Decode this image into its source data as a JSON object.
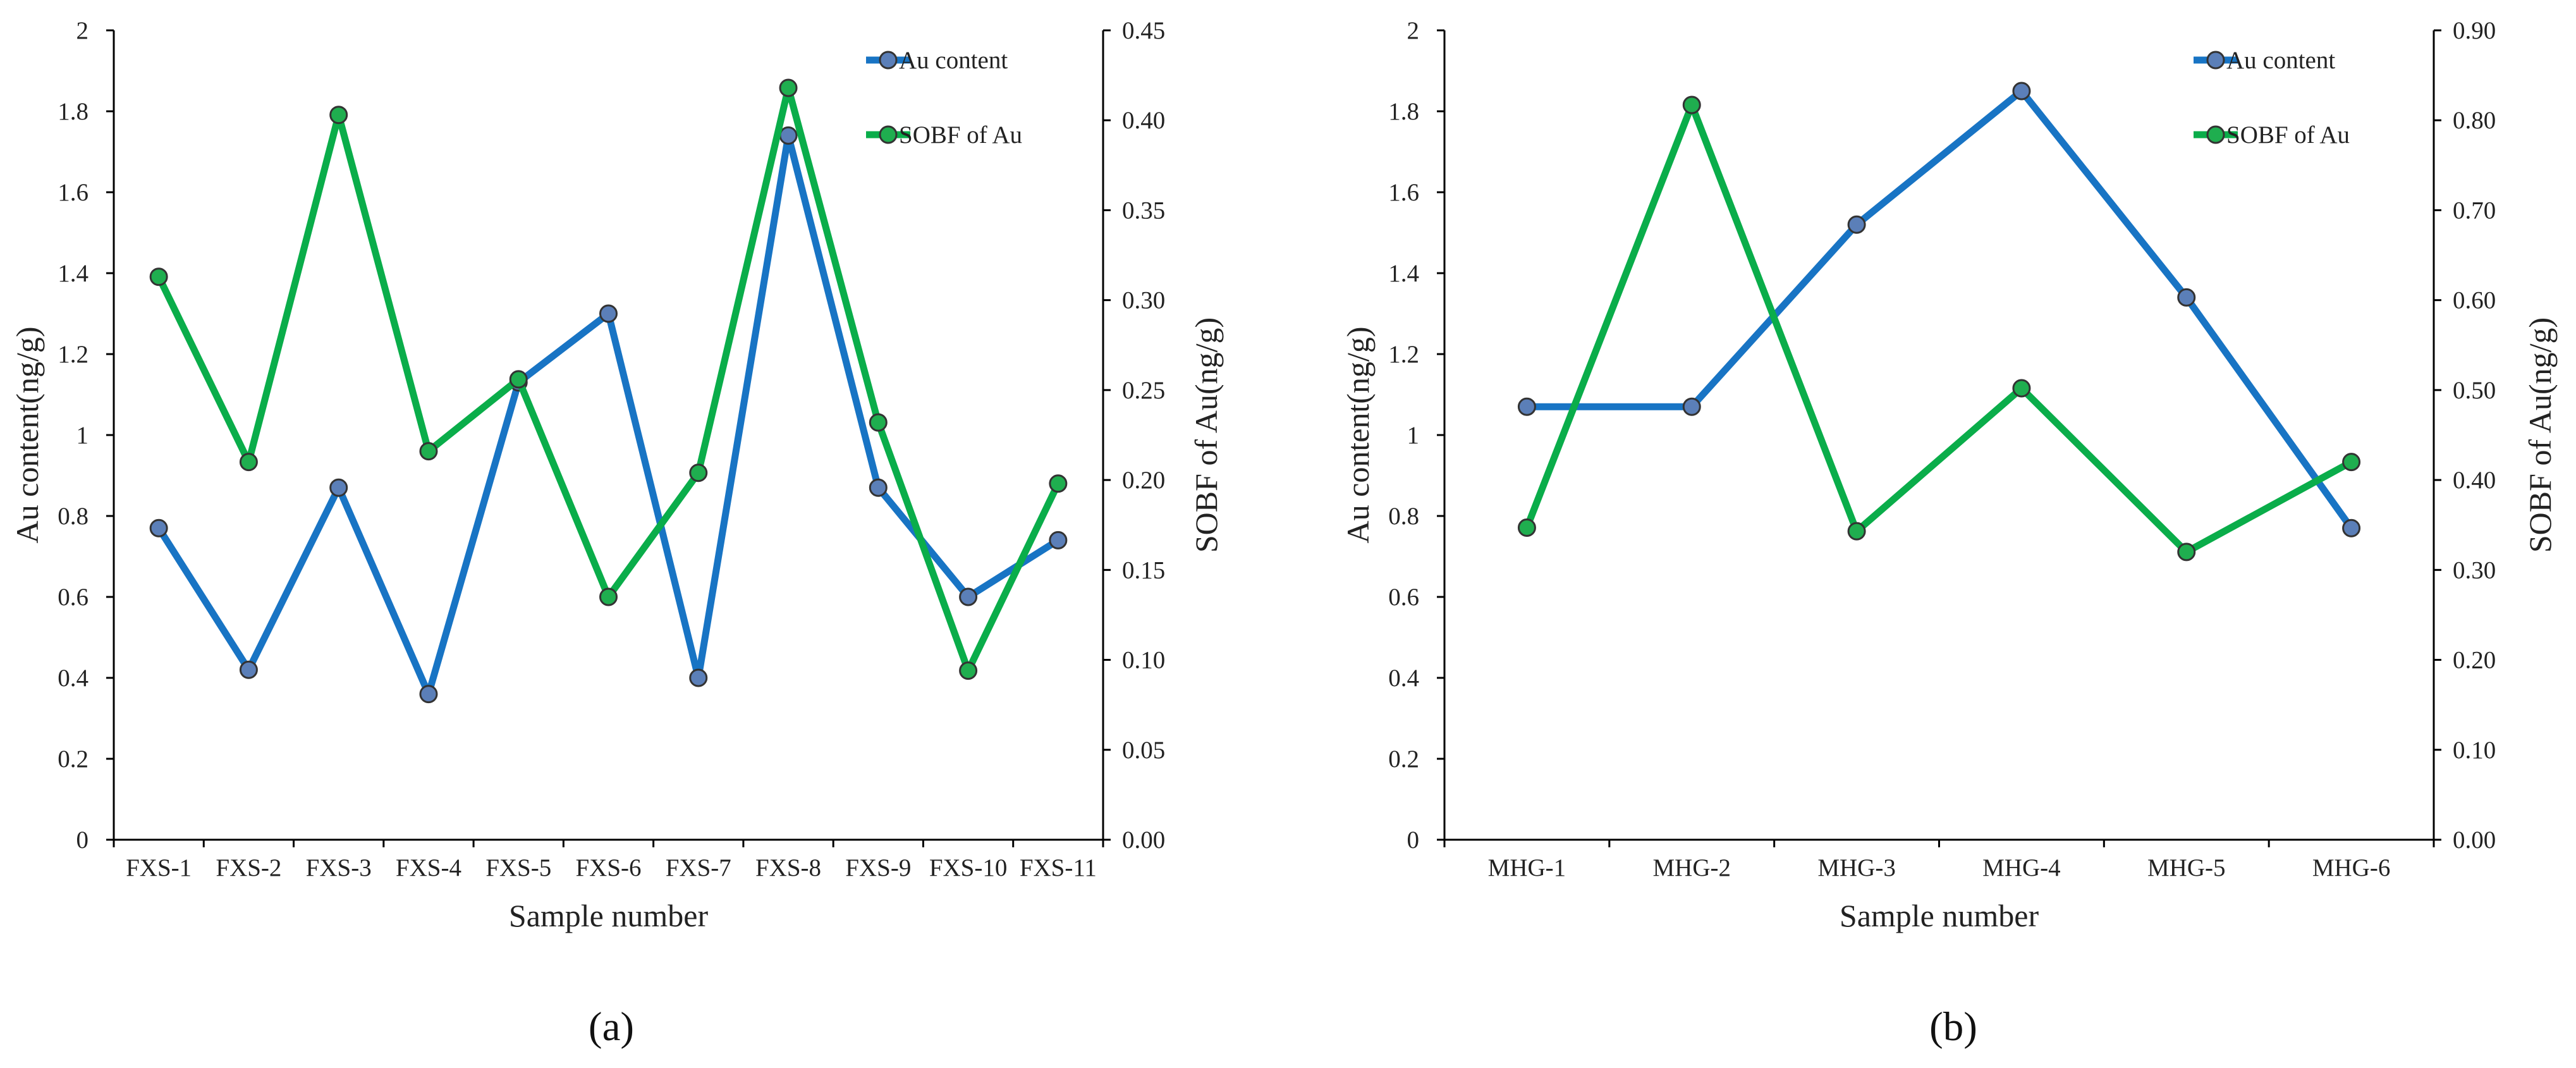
{
  "chart_data": [
    {
      "type": "line",
      "panel_label": "(a)",
      "xlabel": "Sample number",
      "ylabel_left": "Au content(ng/g)",
      "ylabel_right": "SOBF of Au(ng/g)",
      "categories": [
        "FXS-1",
        "FXS-2",
        "FXS-3",
        "FXS-4",
        "FXS-5",
        "FXS-6",
        "FXS-7",
        "FXS-8",
        "FXS-9",
        "FXS-10",
        "FXS-11"
      ],
      "ylim_left": [
        0,
        2
      ],
      "yticks_left": [
        "0",
        "0.2",
        "0.4",
        "0.6",
        "0.8",
        "1",
        "1.2",
        "1.4",
        "1.6",
        "1.8",
        "2"
      ],
      "ylim_right": [
        0,
        0.45
      ],
      "yticks_right": [
        "0.00",
        "0.05",
        "0.10",
        "0.15",
        "0.20",
        "0.25",
        "0.30",
        "0.35",
        "0.40",
        "0.45"
      ],
      "legend_position": "top-right",
      "series": [
        {
          "name": "Au content",
          "axis": "left",
          "color": "#1874c4",
          "marker": "#5b7fb8",
          "values": [
            0.77,
            0.42,
            0.87,
            0.36,
            1.13,
            1.3,
            0.4,
            1.74,
            0.87,
            0.6,
            0.74
          ]
        },
        {
          "name": "SOBF of Au",
          "axis": "right",
          "color": "#0aad4a",
          "marker": "#1fae4f",
          "values": [
            0.313,
            0.21,
            0.403,
            0.216,
            0.256,
            0.135,
            0.204,
            0.418,
            0.232,
            0.094,
            0.198
          ]
        }
      ]
    },
    {
      "type": "line",
      "panel_label": "(b)",
      "xlabel": "Sample number",
      "ylabel_left": "Au content(ng/g)",
      "ylabel_right": "SOBF of Au(ng/g)",
      "categories": [
        "MHG-1",
        "MHG-2",
        "MHG-3",
        "MHG-4",
        "MHG-5",
        "MHG-6"
      ],
      "ylim_left": [
        0,
        2
      ],
      "yticks_left": [
        "0",
        "0.2",
        "0.4",
        "0.6",
        "0.8",
        "1",
        "1.2",
        "1.4",
        "1.6",
        "1.8",
        "2"
      ],
      "ylim_right": [
        0,
        0.9
      ],
      "yticks_right": [
        "0.00",
        "0.10",
        "0.20",
        "0.30",
        "0.40",
        "0.50",
        "0.60",
        "0.70",
        "0.80",
        "0.90"
      ],
      "legend_position": "top-right",
      "series": [
        {
          "name": "Au content",
          "axis": "left",
          "color": "#1874c4",
          "marker": "#5b7fb8",
          "values": [
            1.07,
            1.07,
            1.52,
            1.85,
            1.34,
            0.77
          ]
        },
        {
          "name": "SOBF of Au",
          "axis": "right",
          "color": "#0aad4a",
          "marker": "#1fae4f",
          "values": [
            0.347,
            0.817,
            0.343,
            0.502,
            0.32,
            0.42
          ]
        }
      ]
    }
  ]
}
